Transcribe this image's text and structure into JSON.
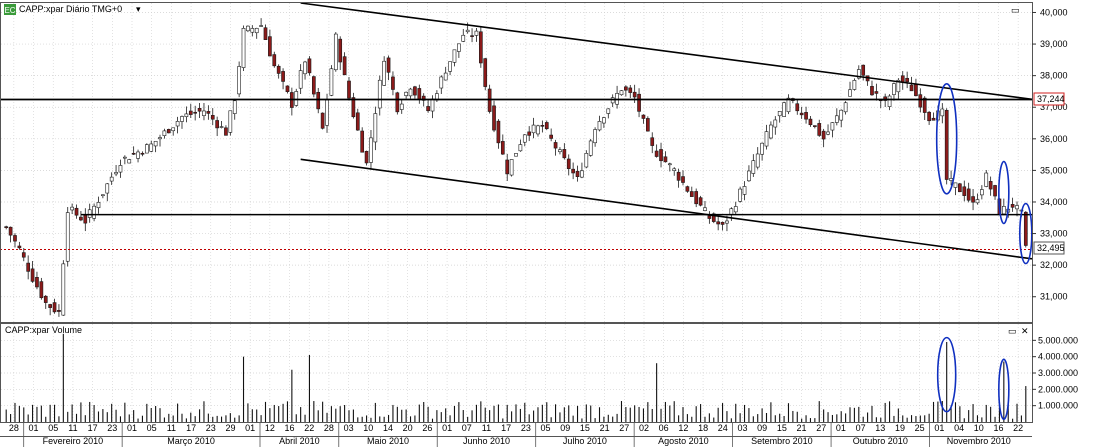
{
  "price_panel": {
    "symbol_label": "CAPP:xpar Diário TMG+0",
    "dropdown_glyph": "▾",
    "badge_text": "EC",
    "price_ticks": [
      "40,000",
      "39,000",
      "38,000",
      "37,000",
      "36,000",
      "35,000",
      "34,000",
      "33,000",
      "32,000",
      "31,000"
    ],
    "price_tick_values": [
      40000,
      39000,
      38000,
      37000,
      36000,
      35000,
      34000,
      33000,
      32000,
      31000
    ],
    "resistance_label": "37,244",
    "resistance_value": 37244,
    "last_price_label": "32,495",
    "last_price_value": 32495,
    "support_value": 33600
  },
  "volume_panel": {
    "title": "CAPP:xpar Volume",
    "volume_ticks": [
      "5.000.000",
      "4.000.000",
      "3.000.000",
      "2.000.000",
      "1.000.000"
    ],
    "volume_tick_values": [
      5000000,
      4000000,
      3000000,
      2000000,
      1000000
    ]
  },
  "window_controls": {
    "restore_glyph": "▭",
    "close_glyph": "✕"
  },
  "x_axis": {
    "day_labels": [
      "28",
      "01",
      "05",
      "11",
      "17",
      "23",
      "01",
      "05",
      "11",
      "17",
      "23",
      "29",
      "01",
      "12",
      "16",
      "22",
      "28",
      "03",
      "10",
      "14",
      "20",
      "26",
      "01",
      "07",
      "11",
      "17",
      "23",
      "05",
      "09",
      "15",
      "21",
      "27",
      "02",
      "06",
      "12",
      "18",
      "24",
      "03",
      "09",
      "15",
      "21",
      "27",
      "01",
      "07",
      "13",
      "19",
      "25",
      "01",
      "04",
      "10",
      "16",
      "22"
    ],
    "month_labels": [
      "Fevereiro 2010",
      "Março 2010",
      "Abril 2010",
      "Maio 2010",
      "Junho 2010",
      "Julho 2010",
      "Agosto 2010",
      "Setembro 2010",
      "Outubro 2010",
      "Novembro 2010"
    ]
  },
  "colors": {
    "up": "#ffffff",
    "down": "#8b1a1a",
    "outline": "#1a1a1a",
    "grid": "#cfcfcf",
    "ellipse": "#1030c0",
    "resistance_badge": "#d02020",
    "dotted": "#c00000"
  },
  "chart_data": {
    "type": "candlestick",
    "x_range": [
      "2010-01-28",
      "2010-11-26"
    ],
    "ylim": [
      30200,
      40300
    ],
    "volume_ylim": [
      0,
      6000000
    ],
    "grid": true,
    "anchor_series": [
      {
        "day": 0,
        "close": 33200
      },
      {
        "day": 3,
        "close": 32500
      },
      {
        "day": 6,
        "close": 31600
      },
      {
        "day": 9,
        "close": 30800
      },
      {
        "day": 12,
        "close": 30500
      },
      {
        "day": 14,
        "close": 33800
      },
      {
        "day": 18,
        "close": 33400
      },
      {
        "day": 22,
        "close": 34300
      },
      {
        "day": 26,
        "close": 35300
      },
      {
        "day": 33,
        "close": 35800
      },
      {
        "day": 40,
        "close": 36700
      },
      {
        "day": 45,
        "close": 36900
      },
      {
        "day": 50,
        "close": 36200
      },
      {
        "day": 52,
        "close": 37300
      },
      {
        "day": 54,
        "close": 39400
      },
      {
        "day": 58,
        "close": 39600
      },
      {
        "day": 61,
        "close": 38300
      },
      {
        "day": 65,
        "close": 37100
      },
      {
        "day": 68,
        "close": 38500
      },
      {
        "day": 72,
        "close": 36300
      },
      {
        "day": 75,
        "close": 39200
      },
      {
        "day": 78,
        "close": 37300
      },
      {
        "day": 82,
        "close": 35200
      },
      {
        "day": 86,
        "close": 38600
      },
      {
        "day": 89,
        "close": 37000
      },
      {
        "day": 92,
        "close": 37700
      },
      {
        "day": 96,
        "close": 36900
      },
      {
        "day": 100,
        "close": 38200
      },
      {
        "day": 104,
        "close": 39300
      },
      {
        "day": 107,
        "close": 39300
      },
      {
        "day": 110,
        "close": 36900
      },
      {
        "day": 114,
        "close": 35000
      },
      {
        "day": 118,
        "close": 36200
      },
      {
        "day": 122,
        "close": 36400
      },
      {
        "day": 127,
        "close": 35300
      },
      {
        "day": 130,
        "close": 34700
      },
      {
        "day": 134,
        "close": 36400
      },
      {
        "day": 137,
        "close": 37000
      },
      {
        "day": 140,
        "close": 37600
      },
      {
        "day": 143,
        "close": 37300
      },
      {
        "day": 147,
        "close": 35700
      },
      {
        "day": 152,
        "close": 35000
      },
      {
        "day": 156,
        "close": 34200
      },
      {
        "day": 160,
        "close": 33500
      },
      {
        "day": 163,
        "close": 33200
      },
      {
        "day": 166,
        "close": 34000
      },
      {
        "day": 170,
        "close": 35200
      },
      {
        "day": 174,
        "close": 36400
      },
      {
        "day": 178,
        "close": 37200
      },
      {
        "day": 182,
        "close": 36700
      },
      {
        "day": 186,
        "close": 36000
      },
      {
        "day": 190,
        "close": 36900
      },
      {
        "day": 194,
        "close": 38200
      },
      {
        "day": 197,
        "close": 37500
      },
      {
        "day": 200,
        "close": 37100
      },
      {
        "day": 203,
        "close": 37900
      },
      {
        "day": 206,
        "close": 37600
      },
      {
        "day": 210,
        "close": 36700
      },
      {
        "day": 213,
        "close": 36800
      },
      {
        "day": 214,
        "close": 34700
      },
      {
        "day": 218,
        "close": 34300
      },
      {
        "day": 220,
        "close": 33900
      },
      {
        "day": 223,
        "close": 34800
      },
      {
        "day": 226,
        "close": 33700
      },
      {
        "day": 229,
        "close": 33900
      },
      {
        "day": 231,
        "close": 33600
      },
      {
        "day": 232,
        "close": 32500
      }
    ],
    "volume_spikes": [
      {
        "day": 13,
        "value": 5400000
      },
      {
        "day": 54,
        "value": 4000000
      },
      {
        "day": 65,
        "value": 3200000
      },
      {
        "day": 69,
        "value": 4100000
      },
      {
        "day": 148,
        "value": 3600000
      },
      {
        "day": 214,
        "value": 4900000
      },
      {
        "day": 227,
        "value": 3700000
      },
      {
        "day": 232,
        "value": 2200000
      }
    ]
  }
}
